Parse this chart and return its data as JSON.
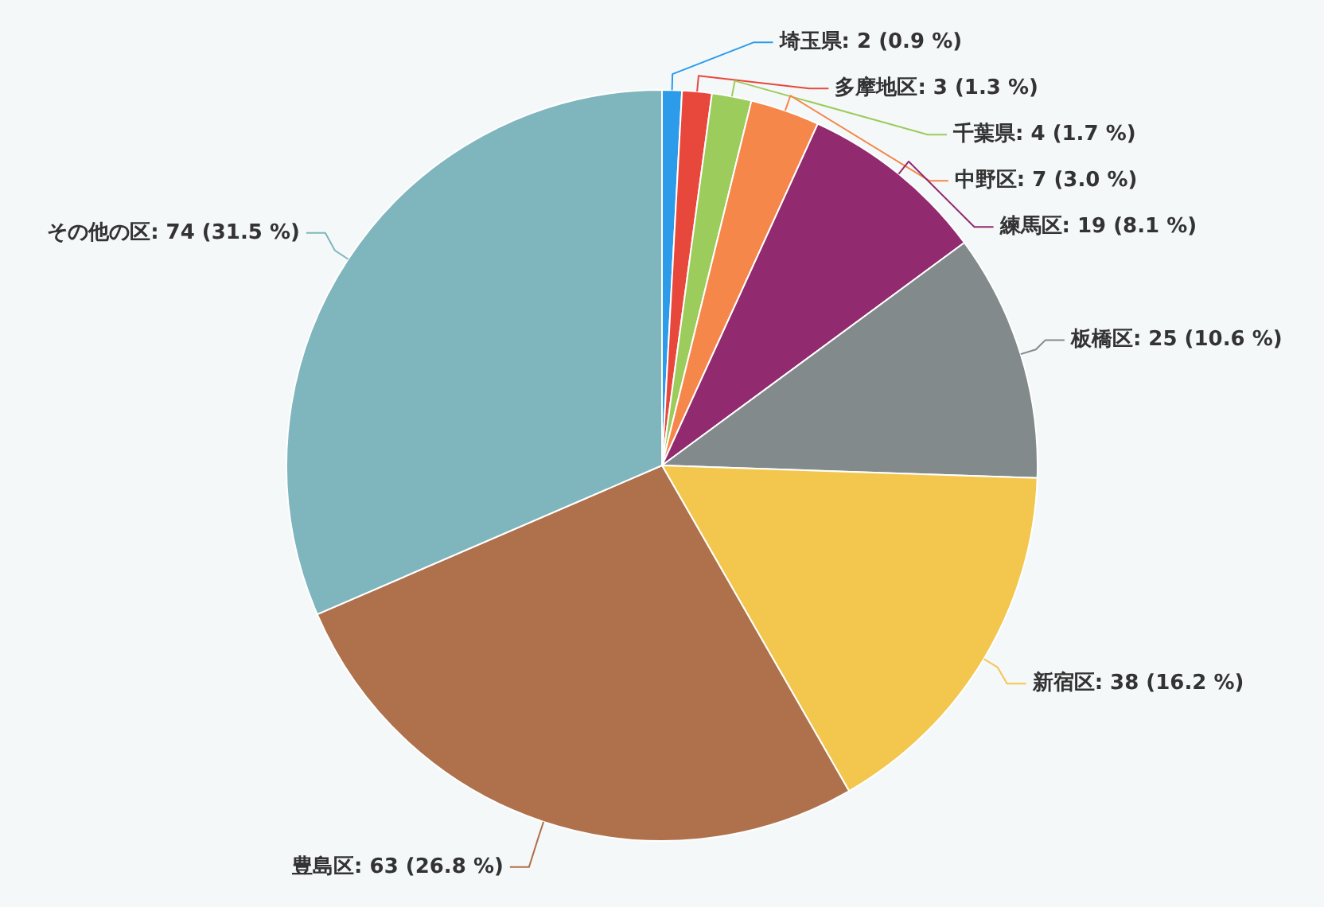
{
  "chart_data": {
    "type": "pie",
    "categories": [
      "埼玉県",
      "多摩地区",
      "千葉県",
      "中野区",
      "練馬区",
      "板橋区",
      "新宿区",
      "豊島区",
      "その他の区"
    ],
    "values": [
      2,
      3,
      4,
      7,
      19,
      25,
      38,
      63,
      74
    ],
    "value_labels": [
      "2 (0.9 %)",
      "3 (1.3 %)",
      "4 (1.7 %)",
      "7 (3.0 %)",
      "19 (8.1 %)",
      "25 (10.6 %)",
      "38 (16.2 %)",
      "63 (26.8 %)",
      "74 (31.5 %)"
    ],
    "colors": [
      "#2b9bea",
      "#e8473c",
      "#9ccc5c",
      "#f5874a",
      "#922a6f",
      "#828a8b",
      "#f3c74d",
      "#ae714c",
      "#7fb5bd"
    ],
    "legend": false
  }
}
